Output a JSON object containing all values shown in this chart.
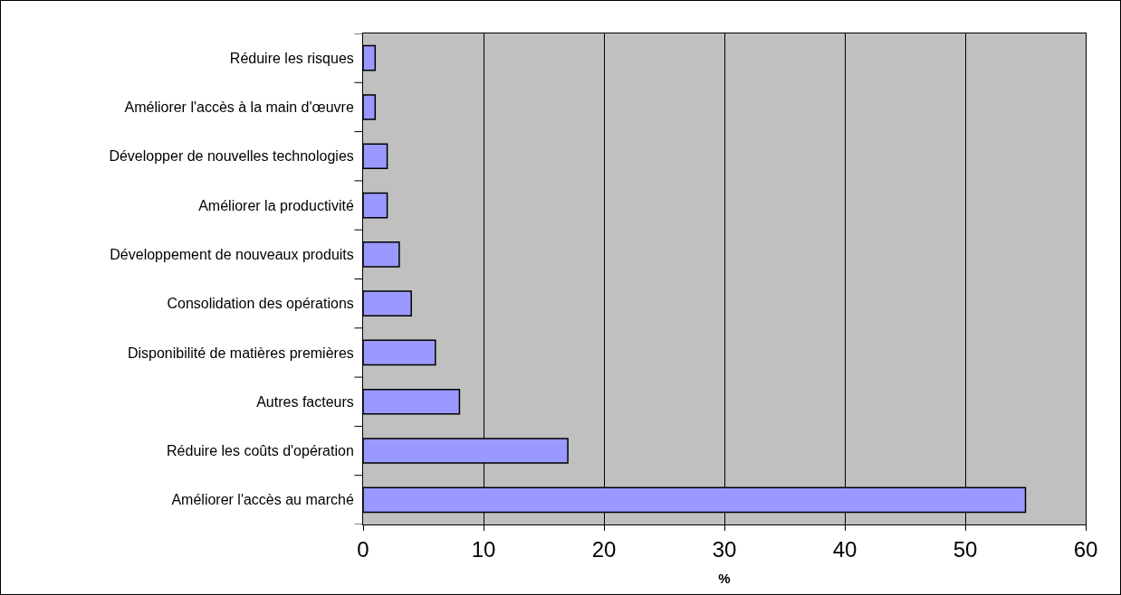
{
  "chart_data": {
    "type": "bar",
    "orientation": "horizontal",
    "xlabel": "%",
    "categories": [
      "Réduire les risques",
      "Améliorer l'accès à la main d'œuvre",
      "Développer de nouvelles technologies",
      "Améliorer la productivité",
      "Développement de nouveaux produits",
      "Consolidation des opérations",
      "Disponibilité de matières premières",
      "Autres facteurs",
      "Réduire les coûts d'opération",
      "Améliorer l'accès au marché"
    ],
    "values": [
      1,
      1,
      2,
      2,
      3,
      4,
      6,
      8,
      17,
      55
    ],
    "color": "#9999ff",
    "xlim": [
      0,
      60
    ],
    "xticks": [
      0,
      10,
      20,
      30,
      40,
      50,
      60
    ],
    "grid": "x"
  }
}
